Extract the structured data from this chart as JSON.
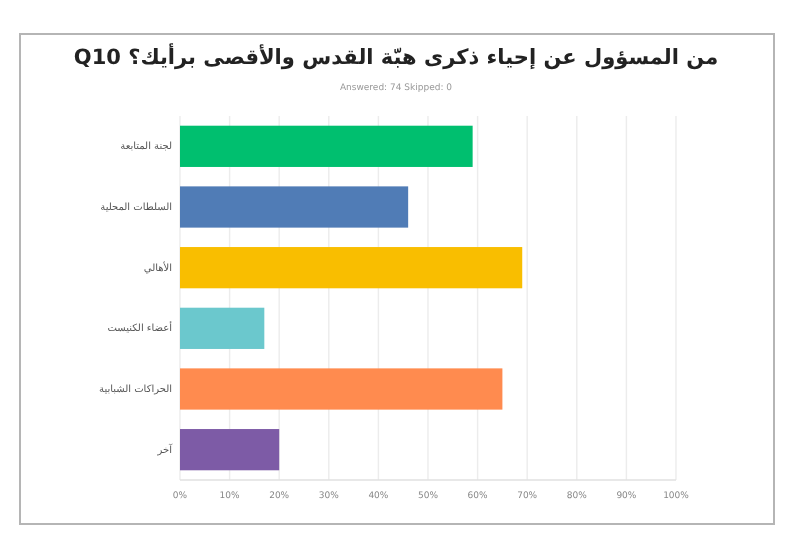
{
  "chart_data": {
    "type": "bar",
    "orientation": "horizontal",
    "title": "من المسؤول عن إحياء ذكرى هبّة القدس والأقصى برأيك؟ Q10",
    "subtitle": "Answered: 74    Skipped: 0",
    "categories": [
      "لجنة المتابعة",
      "السلطات المحلية",
      "الأهالي",
      "أعضاء الكنيست",
      "الحراكات الشبابية",
      "آخر"
    ],
    "values": [
      59,
      46,
      69,
      17,
      65,
      20
    ],
    "colors": [
      "#00bf6f",
      "#507cb6",
      "#f9be00",
      "#6bc8cd",
      "#ff8b4f",
      "#7d5ba6"
    ],
    "xlim": [
      0,
      100
    ],
    "xticks": [
      {
        "value": 0,
        "label": "0%"
      },
      {
        "value": 10,
        "label": "10%"
      },
      {
        "value": 20,
        "label": "20%"
      },
      {
        "value": 30,
        "label": "30%"
      },
      {
        "value": 40,
        "label": "40%"
      },
      {
        "value": 50,
        "label": "50%"
      },
      {
        "value": 60,
        "label": "60%"
      },
      {
        "value": 70,
        "label": "70%"
      },
      {
        "value": 80,
        "label": "80%"
      },
      {
        "value": 90,
        "label": "90%"
      },
      {
        "value": 100,
        "label": "100%"
      }
    ],
    "grid": "x"
  }
}
